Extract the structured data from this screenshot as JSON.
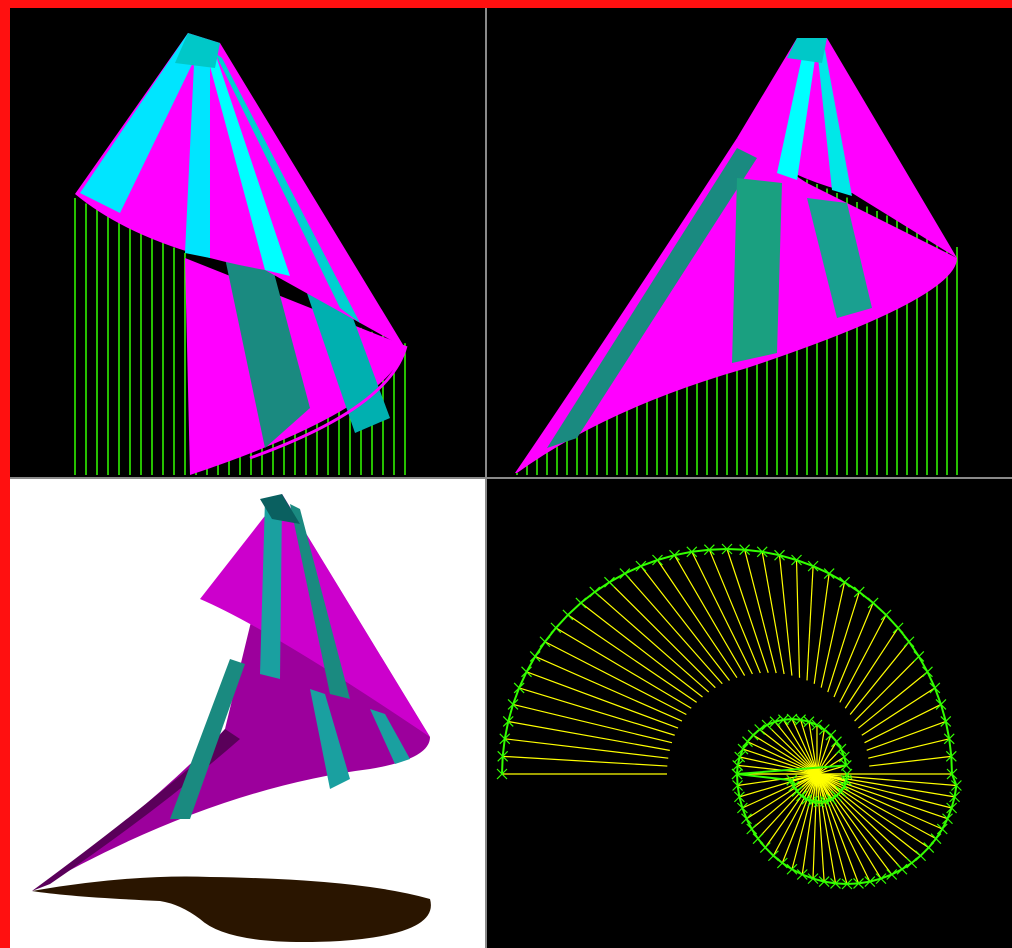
{
  "viewports": [
    {
      "id": "top-left",
      "mode": "wireframe-shaded",
      "background": "#000000"
    },
    {
      "id": "top-right",
      "mode": "wireframe-shaded",
      "background": "#000000"
    },
    {
      "id": "bottom-left",
      "mode": "rendered-with-shadow",
      "background": "#ffffff"
    },
    {
      "id": "bottom-right",
      "mode": "top-view-spiral",
      "background": "#000000"
    }
  ],
  "colors": {
    "frame_border": "#ff1010",
    "viewport_divider": "#8a8a8a",
    "surface_magenta": "#ff00ff",
    "surface_cyan": "#00ffff",
    "surface_teal": "#1a8a80",
    "projection_lines": "#33ff00",
    "spiral_curve": "#33ff00",
    "spiral_radials": "#ffff00",
    "rendered_magenta": "#b000b0",
    "rendered_teal": "#1aa0a0",
    "shadow": "#2a1500"
  },
  "icons": [
    "spiral-cone-model",
    "shadow-shape",
    "spiral-curve-markers"
  ]
}
